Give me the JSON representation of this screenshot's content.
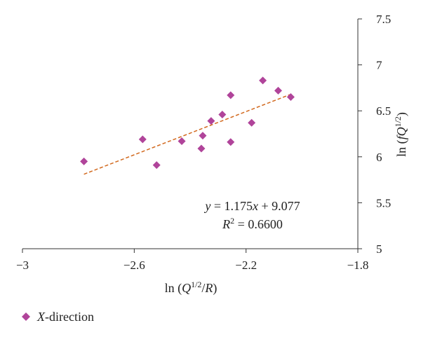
{
  "chart_data": {
    "type": "scatter",
    "xlabel": "ln (Q1/2/R)",
    "ylabel": "ln (fQ1/2)",
    "xlim": [
      -3,
      -1.8
    ],
    "ylim": [
      5,
      7.5
    ],
    "x_ticks": [
      "−3",
      "−2.6",
      "−2.2",
      "−1.8"
    ],
    "y_ticks": [
      "5",
      "5.5",
      "6",
      "6.5",
      "7",
      "7.5"
    ],
    "grid": false,
    "legend_position": "bottom-left",
    "series": [
      {
        "name": "X-direction",
        "color": "#b0449a",
        "marker": "diamond",
        "points": [
          {
            "x": -2.78,
            "y": 5.95
          },
          {
            "x": -2.57,
            "y": 6.19
          },
          {
            "x": -2.52,
            "y": 5.91
          },
          {
            "x": -2.43,
            "y": 6.17
          },
          {
            "x": -2.355,
            "y": 6.23
          },
          {
            "x": -2.36,
            "y": 6.09
          },
          {
            "x": -2.325,
            "y": 6.39
          },
          {
            "x": -2.285,
            "y": 6.46
          },
          {
            "x": -2.255,
            "y": 6.67
          },
          {
            "x": -2.255,
            "y": 6.16
          },
          {
            "x": -2.18,
            "y": 6.37
          },
          {
            "x": -2.14,
            "y": 6.83
          },
          {
            "x": -2.085,
            "y": 6.72
          },
          {
            "x": -2.04,
            "y": 6.65
          }
        ]
      }
    ],
    "trendline": {
      "slope": 1.175,
      "intercept": 9.077,
      "x_range": [
        -2.78,
        -2.04
      ],
      "color": "#d2691e",
      "style": "dashed",
      "equation_label": "y = 1.175x + 9.077",
      "r2_label": "R2 = 0.6600"
    }
  }
}
